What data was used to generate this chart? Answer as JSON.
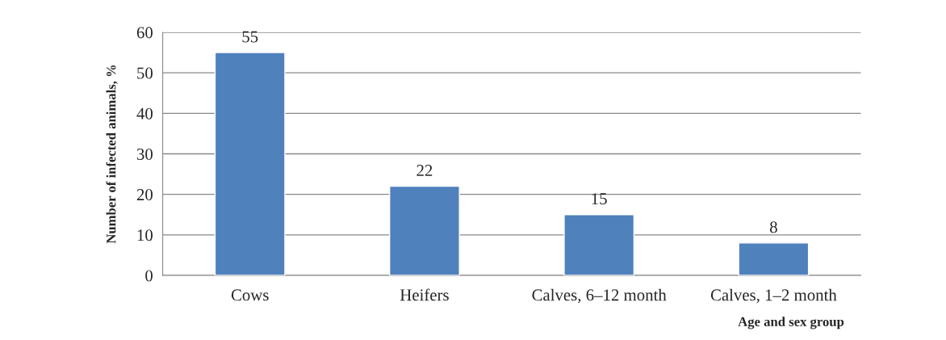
{
  "chart_data": {
    "type": "bar",
    "categories": [
      "Cows",
      "Heifers",
      "Calves, 6–12 month",
      "Calves, 1–2 month"
    ],
    "values": [
      55,
      22,
      15,
      8
    ],
    "color": "#4f81bd",
    "xlabel": "Age and sex group",
    "ylabel": "Number of infected animals, %",
    "ylim": [
      0,
      60
    ],
    "yticks": [
      0,
      10,
      20,
      30,
      40,
      50,
      60
    ],
    "grid": "y",
    "data_labels": true
  }
}
